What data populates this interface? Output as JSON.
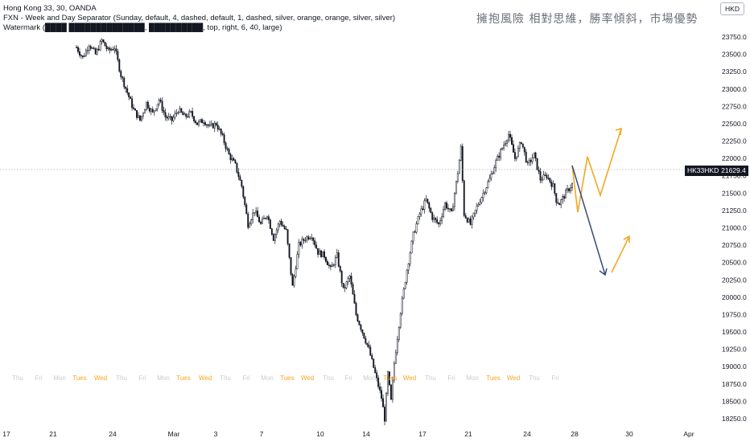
{
  "legend": {
    "line1": "Hong Kong 33, 30, OANDA",
    "line2": "FXN - Week and Day Separator (Sunday, default, 4, dashed, default, 1, dashed, silver, orange, orange, silver, silver)",
    "line3": "Watermark (████ ██████████████, ██████████, top, right, 6, 40, large)"
  },
  "watermark_text": "擁抱風險 相對思維，勝率傾斜，市場優勢",
  "currency_button": "HKD",
  "symbol_tag": "HK33HKD",
  "last_price": "21629.4",
  "price_axis": {
    "labels": [
      "18250.0",
      "18500.0",
      "18750.0",
      "19000.0",
      "19250.0",
      "19500.0",
      "19750.0",
      "20000.0",
      "20250.0",
      "20500.0",
      "20750.0",
      "21000.0",
      "21250.0",
      "21500.0",
      "21750.0",
      "22000.0",
      "22250.0",
      "22500.0",
      "22750.0",
      "23000.0",
      "23250.0",
      "23500.0",
      "23750.0"
    ]
  },
  "time_axis": {
    "labels": [
      "17",
      "21",
      "24",
      "Mar",
      "3",
      "7",
      "10",
      "14",
      "17",
      "21",
      "24",
      "28",
      "30",
      "Apr"
    ]
  },
  "day_labels": [
    {
      "t": "Thu",
      "c": "#c9cbd2"
    },
    {
      "t": "Fri",
      "c": "#c9cbd2"
    },
    {
      "t": "Mon",
      "c": "#c9cbd2"
    },
    {
      "t": "Tues",
      "c": "#f5a623"
    },
    {
      "t": "Wed",
      "c": "#f5a623"
    },
    {
      "t": "Thu",
      "c": "#c9cbd2"
    },
    {
      "t": "Fri",
      "c": "#c9cbd2"
    },
    {
      "t": "Mon",
      "c": "#c9cbd2"
    },
    {
      "t": "Tues",
      "c": "#f5a623"
    },
    {
      "t": "Wed",
      "c": "#f5a623"
    },
    {
      "t": "Thu",
      "c": "#c9cbd2"
    },
    {
      "t": "Fri",
      "c": "#c9cbd2"
    },
    {
      "t": "Mon",
      "c": "#c9cbd2"
    },
    {
      "t": "Tues",
      "c": "#f5a623"
    },
    {
      "t": "Wed",
      "c": "#f5a623"
    },
    {
      "t": "Thu",
      "c": "#c9cbd2"
    },
    {
      "t": "Fri",
      "c": "#c9cbd2"
    },
    {
      "t": "Mon",
      "c": "#c9cbd2"
    },
    {
      "t": "Tues",
      "c": "#f5a623"
    },
    {
      "t": "Wed",
      "c": "#f5a623"
    },
    {
      "t": "Thu",
      "c": "#c9cbd2"
    },
    {
      "t": "Fri",
      "c": "#c9cbd2"
    },
    {
      "t": "Mon",
      "c": "#c9cbd2"
    },
    {
      "t": "Tues",
      "c": "#f5a623"
    },
    {
      "t": "Wed",
      "c": "#f5a623"
    },
    {
      "t": "Thu",
      "c": "#c9cbd2"
    },
    {
      "t": "Fri",
      "c": "#c9cbd2"
    }
  ],
  "colors": {
    "candles": "#131722",
    "orange": "#f5a623",
    "navy": "#3a4a7a",
    "axis_text": "#131722"
  },
  "price_path": [
    [
      0,
      23600
    ],
    [
      4,
      23450
    ],
    [
      8,
      23650
    ],
    [
      12,
      23500
    ],
    [
      16,
      23700
    ],
    [
      20,
      23550
    ],
    [
      24,
      23600
    ],
    [
      28,
      23200
    ],
    [
      32,
      22950
    ],
    [
      36,
      22700
    ],
    [
      40,
      22550
    ],
    [
      44,
      22800
    ],
    [
      48,
      22650
    ],
    [
      52,
      22850
    ],
    [
      56,
      22600
    ],
    [
      60,
      22550
    ],
    [
      64,
      22700
    ],
    [
      68,
      22600
    ],
    [
      72,
      22650
    ],
    [
      76,
      22500
    ],
    [
      80,
      22550
    ],
    [
      84,
      22450
    ],
    [
      88,
      22500
    ],
    [
      92,
      22300
    ],
    [
      96,
      22050
    ],
    [
      100,
      21900
    ],
    [
      104,
      21600
    ],
    [
      108,
      21050
    ],
    [
      112,
      21250
    ],
    [
      116,
      21050
    ],
    [
      120,
      21200
    ],
    [
      124,
      20850
    ],
    [
      128,
      21100
    ],
    [
      132,
      20950
    ],
    [
      136,
      20150
    ],
    [
      140,
      20750
    ],
    [
      144,
      20850
    ],
    [
      148,
      20900
    ],
    [
      152,
      20650
    ],
    [
      156,
      20600
    ],
    [
      160,
      20400
    ],
    [
      164,
      20600
    ],
    [
      168,
      20100
    ],
    [
      172,
      20300
    ],
    [
      176,
      19750
    ],
    [
      180,
      19500
    ],
    [
      184,
      19250
    ],
    [
      188,
      18900
    ],
    [
      192,
      18550
    ],
    [
      194,
      18250
    ],
    [
      196,
      18900
    ],
    [
      198,
      18500
    ],
    [
      200,
      19050
    ],
    [
      204,
      19800
    ],
    [
      208,
      20400
    ],
    [
      212,
      20900
    ],
    [
      216,
      21200
    ],
    [
      220,
      21400
    ],
    [
      224,
      21150
    ],
    [
      228,
      21050
    ],
    [
      232,
      21350
    ],
    [
      236,
      21200
    ],
    [
      240,
      21800
    ],
    [
      242,
      22150
    ],
    [
      244,
      21200
    ],
    [
      248,
      21050
    ],
    [
      252,
      21300
    ],
    [
      256,
      21500
    ],
    [
      260,
      21700
    ],
    [
      264,
      21950
    ],
    [
      268,
      22150
    ],
    [
      272,
      22350
    ],
    [
      276,
      22000
    ],
    [
      280,
      22250
    ],
    [
      284,
      21900
    ],
    [
      288,
      22050
    ],
    [
      292,
      21700
    ],
    [
      296,
      21750
    ],
    [
      300,
      21600
    ],
    [
      302,
      21400
    ],
    [
      304,
      21350
    ],
    [
      308,
      21500
    ],
    [
      312,
      21629
    ]
  ]
}
